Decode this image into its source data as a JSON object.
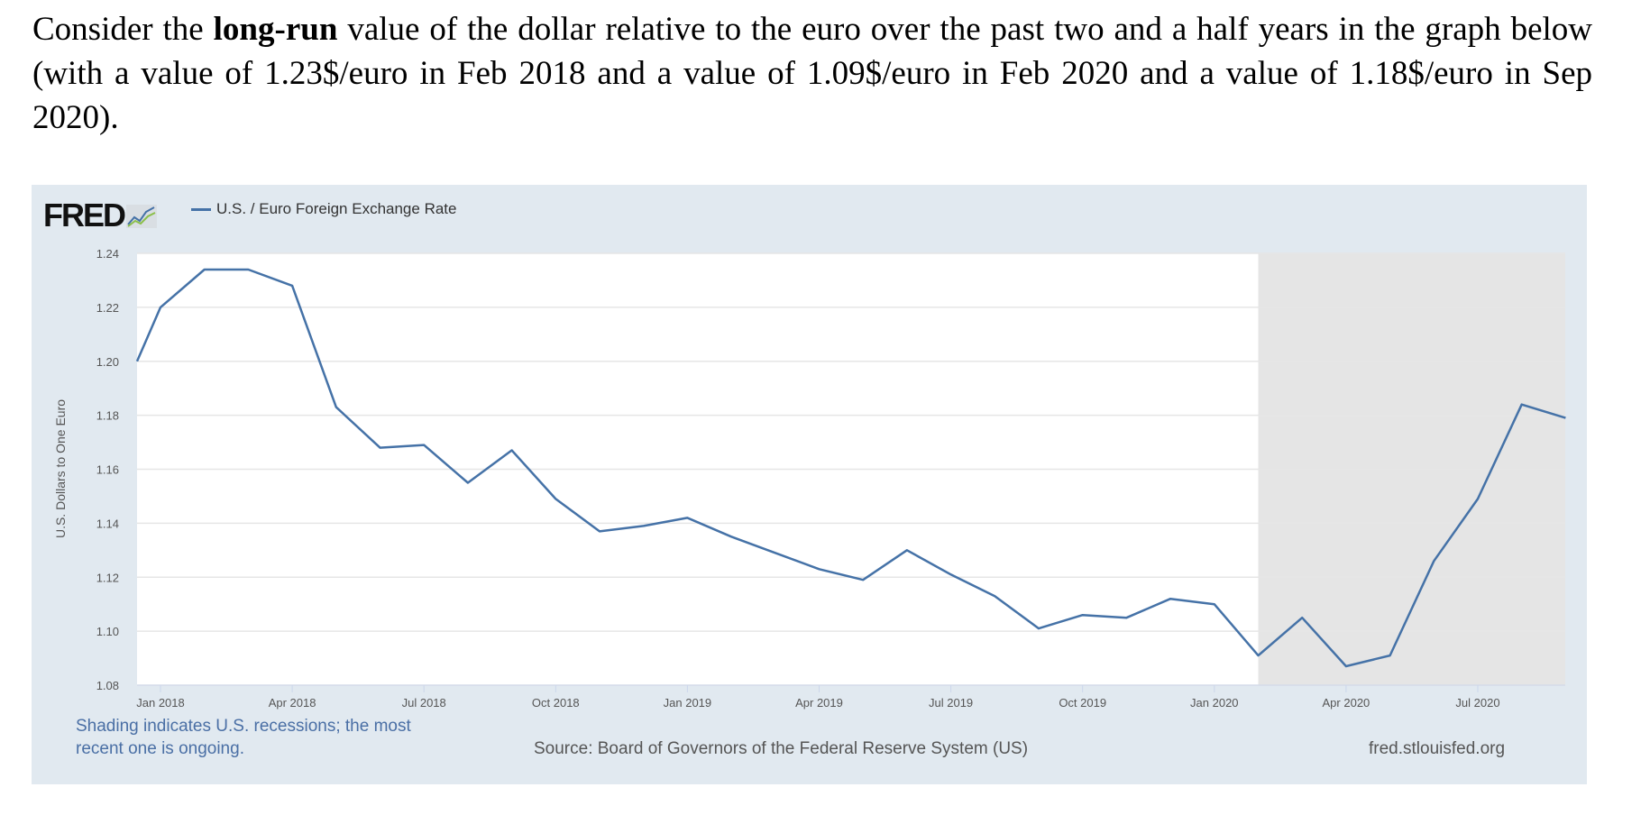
{
  "question": {
    "before": "Consider the ",
    "bold": "long-run",
    "after": " value of the dollar relative to the euro over the past two and a half years in the graph below (with a value of 1.23$/euro in Feb 2018 and a value of 1.09$/euro in Feb 2020 and a value of 1.18$/euro in Sep 2020)."
  },
  "fred": {
    "logo": "FRED",
    "recession_note": "Shading indicates U.S. recessions; the most recent one is ongoing.",
    "source": "Source: Board of Governors of the Federal Reserve System (US)",
    "site": "fred.stlouisfed.org"
  },
  "chart_data": {
    "type": "line",
    "title": "",
    "ylabel": "U.S. Dollars to One Euro",
    "xlabel": "",
    "ylim": [
      1.08,
      1.24
    ],
    "xlim": [
      "2017-12-15",
      "2020-09"
    ],
    "grid": true,
    "legend_position": "top-left",
    "yticks": [
      "1.08",
      "1.10",
      "1.12",
      "1.14",
      "1.16",
      "1.18",
      "1.20",
      "1.22",
      "1.24"
    ],
    "xticks": [
      {
        "label": "Jan 2018",
        "x": "2018-01"
      },
      {
        "label": "Apr 2018",
        "x": "2018-04"
      },
      {
        "label": "Jul 2018",
        "x": "2018-07"
      },
      {
        "label": "Oct 2018",
        "x": "2018-10"
      },
      {
        "label": "Jan 2019",
        "x": "2019-01"
      },
      {
        "label": "Apr 2019",
        "x": "2019-04"
      },
      {
        "label": "Jul 2019",
        "x": "2019-07"
      },
      {
        "label": "Oct 2019",
        "x": "2019-10"
      },
      {
        "label": "Jan 2020",
        "x": "2020-01"
      },
      {
        "label": "Apr 2020",
        "x": "2020-04"
      },
      {
        "label": "Jul 2020",
        "x": "2020-07"
      }
    ],
    "recession_shading": {
      "start": "2020-02",
      "end": "2020-09",
      "color": "#e5e5e5"
    },
    "series": [
      {
        "name": "U.S. / Euro Foreign Exchange Rate",
        "color": "#4572a7",
        "x": [
          "2017-12-15",
          "2018-01",
          "2018-02",
          "2018-03",
          "2018-04",
          "2018-05",
          "2018-06",
          "2018-07",
          "2018-08",
          "2018-09",
          "2018-10",
          "2018-11",
          "2018-12",
          "2019-01",
          "2019-02",
          "2019-03",
          "2019-04",
          "2019-05",
          "2019-06",
          "2019-07",
          "2019-08",
          "2019-09",
          "2019-10",
          "2019-11",
          "2019-12",
          "2020-01",
          "2020-02",
          "2020-03",
          "2020-04",
          "2020-05",
          "2020-06",
          "2020-07",
          "2020-08",
          "2020-09"
        ],
        "y": [
          1.2,
          1.22,
          1.234,
          1.234,
          1.228,
          1.183,
          1.168,
          1.169,
          1.155,
          1.167,
          1.149,
          1.137,
          1.139,
          1.142,
          1.135,
          1.129,
          1.123,
          1.119,
          1.13,
          1.121,
          1.113,
          1.101,
          1.106,
          1.105,
          1.112,
          1.11,
          1.091,
          1.105,
          1.087,
          1.091,
          1.126,
          1.149,
          1.184,
          1.179
        ]
      }
    ]
  }
}
